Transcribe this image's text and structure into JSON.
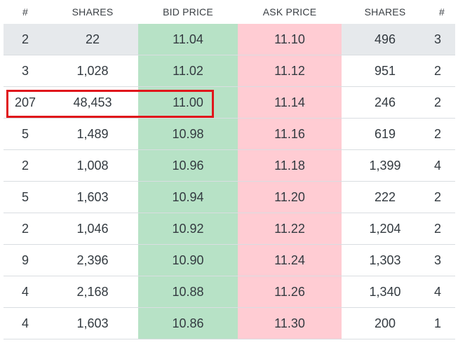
{
  "headers": {
    "bid_count": "#",
    "bid_shares": "SHARES",
    "bid_price": "BID PRICE",
    "ask_price": "ASK PRICE",
    "ask_shares": "SHARES",
    "ask_count": "#"
  },
  "rows": [
    {
      "bid_count": "2",
      "bid_shares": "22",
      "bid_price": "11.04",
      "ask_price": "11.10",
      "ask_shares": "496",
      "ask_count": "3"
    },
    {
      "bid_count": "3",
      "bid_shares": "1,028",
      "bid_price": "11.02",
      "ask_price": "11.12",
      "ask_shares": "951",
      "ask_count": "2"
    },
    {
      "bid_count": "207",
      "bid_shares": "48,453",
      "bid_price": "11.00",
      "ask_price": "11.14",
      "ask_shares": "246",
      "ask_count": "2"
    },
    {
      "bid_count": "5",
      "bid_shares": "1,489",
      "bid_price": "10.98",
      "ask_price": "11.16",
      "ask_shares": "619",
      "ask_count": "2"
    },
    {
      "bid_count": "2",
      "bid_shares": "1,008",
      "bid_price": "10.96",
      "ask_price": "11.18",
      "ask_shares": "1,399",
      "ask_count": "4"
    },
    {
      "bid_count": "5",
      "bid_shares": "1,603",
      "bid_price": "10.94",
      "ask_price": "11.20",
      "ask_shares": "222",
      "ask_count": "2"
    },
    {
      "bid_count": "2",
      "bid_shares": "1,046",
      "bid_price": "10.92",
      "ask_price": "11.22",
      "ask_shares": "1,204",
      "ask_count": "2"
    },
    {
      "bid_count": "9",
      "bid_shares": "2,396",
      "bid_price": "10.90",
      "ask_price": "11.24",
      "ask_shares": "1,303",
      "ask_count": "3"
    },
    {
      "bid_count": "4",
      "bid_shares": "2,168",
      "bid_price": "10.88",
      "ask_price": "11.26",
      "ask_shares": "1,340",
      "ask_count": "4"
    },
    {
      "bid_count": "4",
      "bid_shares": "1,603",
      "bid_price": "10.86",
      "ask_price": "11.30",
      "ask_shares": "200",
      "ask_count": "1"
    }
  ],
  "colors": {
    "bid_background": "#b7e2c6",
    "ask_background": "#ffccd3",
    "top_row_background": "#e6e9ec",
    "highlight_border": "#e0161b"
  },
  "highlighted_row": "3"
}
